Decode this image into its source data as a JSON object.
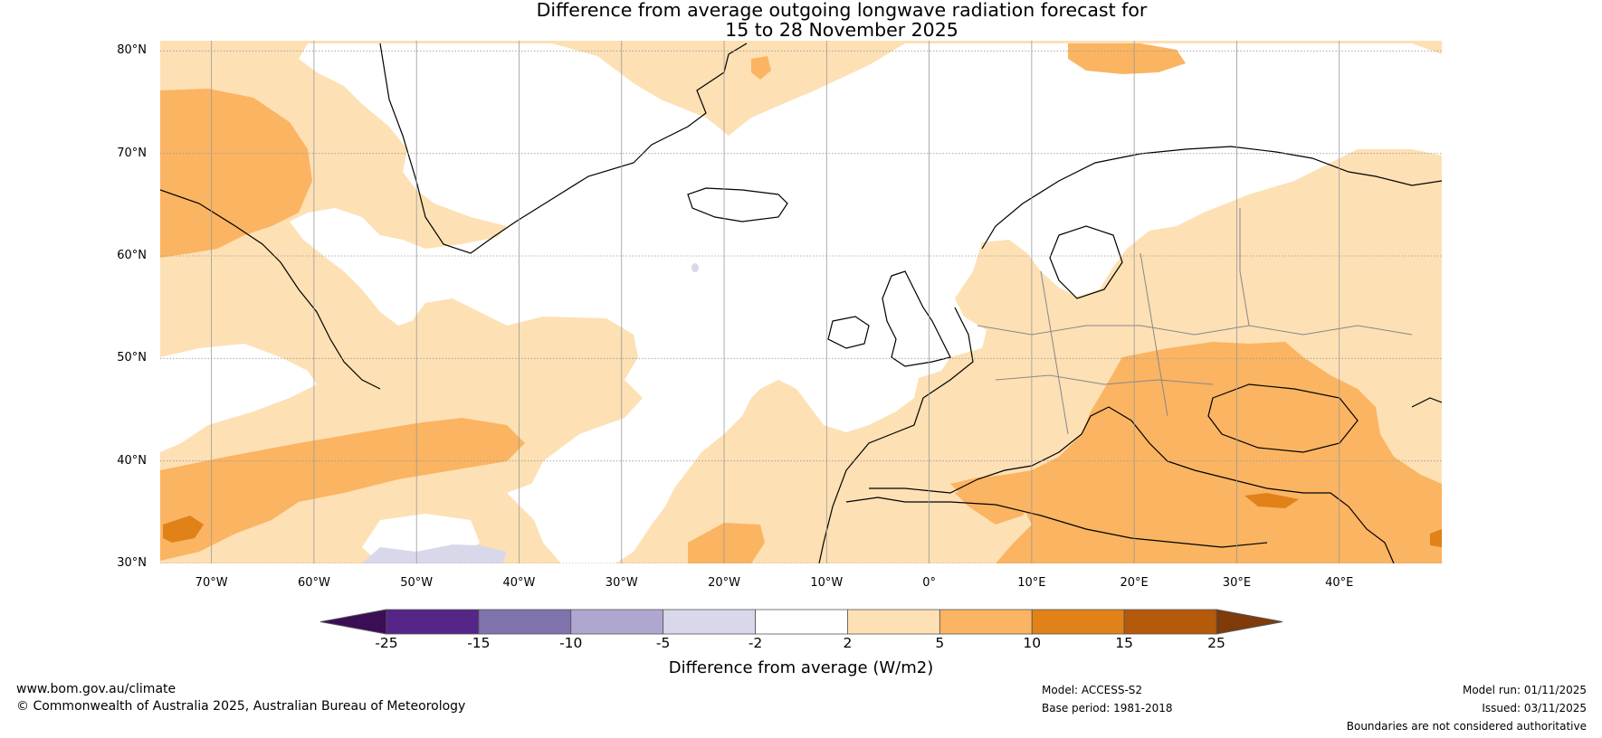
{
  "title": {
    "line1": "Difference from average outgoing longwave radiation forecast for",
    "line2": "15 to 28 November 2025"
  },
  "map": {
    "lat_labels": [
      "80°N",
      "70°N",
      "60°N",
      "50°N",
      "40°N",
      "30°N"
    ],
    "lon_labels": [
      "70°W",
      "60°W",
      "50°W",
      "40°W",
      "30°W",
      "20°W",
      "10°W",
      "0°",
      "10°E",
      "20°E",
      "30°E",
      "40°E"
    ],
    "extent": {
      "lon_min": -75,
      "lon_max": 50,
      "lat_min": 30,
      "lat_max": 81
    },
    "land_features": [
      "Greenland",
      "Canada",
      "Iceland",
      "United Kingdom",
      "Ireland",
      "Scandinavia",
      "Europe",
      "North Africa",
      "Turkey",
      "Middle East"
    ]
  },
  "colorbar": {
    "title": "Difference from average (W/m2)",
    "tick_labels": [
      "-25",
      "-15",
      "-10",
      "-5",
      "-2",
      "2",
      "5",
      "10",
      "15",
      "25"
    ],
    "colors": [
      "#3a0d55",
      "#562588",
      "#7f72ad",
      "#b0a7d1",
      "#d8d8ea",
      "#ffffff",
      "#fde0b4",
      "#fbb462",
      "#e08218",
      "#b45a0a",
      "#7f3b0a"
    ]
  },
  "footer": {
    "website": "www.bom.gov.au/climate",
    "copyright": "© Commonwealth of Australia 2025, Australian Bureau of Meteorology",
    "model": "Model: ACCESS-S2",
    "base_period": "Base period: 1981-2018",
    "model_run": "Model run: 01/11/2025",
    "issued": "Issued: 03/11/2025",
    "disclaimer": "Boundaries are not considered authoritative"
  }
}
